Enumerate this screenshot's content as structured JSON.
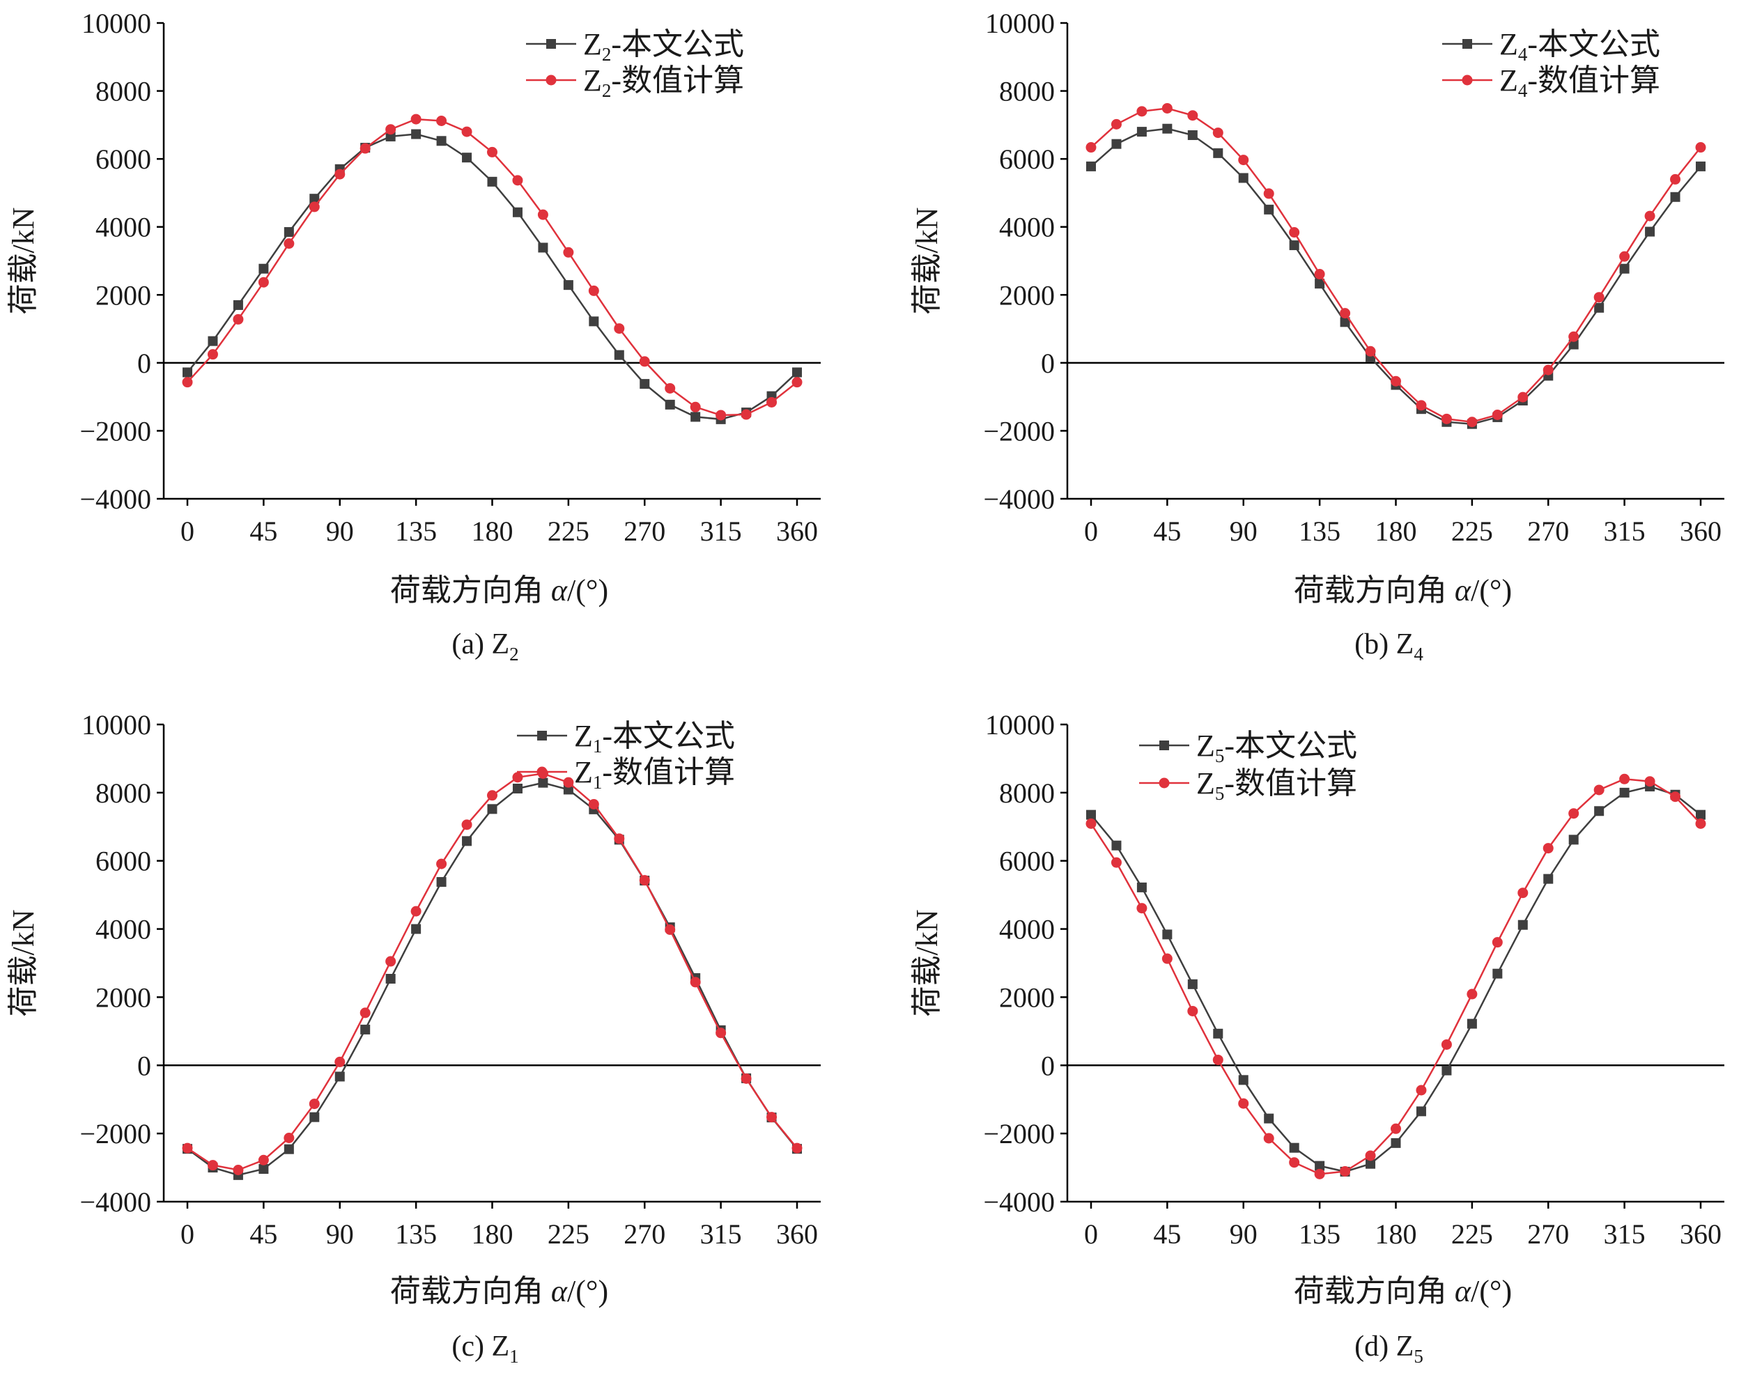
{
  "chart_data": [
    {
      "type": "line",
      "caption": "(a) Z",
      "caption_sub": "2",
      "ylabel": "荷载/kN",
      "xlabel_main": "荷载方向角 ",
      "xlabel_var": "α",
      "xlabel_unit": "/(°)",
      "xlim": [
        0,
        360
      ],
      "ylim": [
        -4000,
        10000
      ],
      "xticks": [
        0,
        45,
        90,
        135,
        180,
        225,
        270,
        315,
        360
      ],
      "yticks": [
        -4000,
        -2000,
        0,
        2000,
        4000,
        6000,
        8000,
        10000
      ],
      "legend_position": "top-right",
      "series": [
        {
          "name_main": "Z",
          "name_sub": "2",
          "name_rest": "-本文公式",
          "color": "#3f3f3f",
          "marker": "square",
          "x": [
            0,
            15,
            30,
            45,
            60,
            75,
            90,
            105,
            120,
            135,
            150,
            165,
            180,
            195,
            210,
            225,
            240,
            255,
            270,
            285,
            300,
            315,
            330,
            345,
            360
          ],
          "y": [
            -280,
            640,
            1700,
            2770,
            3850,
            4830,
            5700,
            6330,
            6660,
            6730,
            6530,
            6040,
            5330,
            4430,
            3390,
            2290,
            1220,
            230,
            -620,
            -1230,
            -1590,
            -1660,
            -1460,
            -980,
            -280
          ]
        },
        {
          "name_main": "Z",
          "name_sub": "2",
          "name_rest": "-数值计算",
          "color": "#e0323c",
          "marker": "circle",
          "x": [
            0,
            15,
            30,
            45,
            60,
            75,
            90,
            105,
            120,
            135,
            150,
            165,
            180,
            195,
            210,
            225,
            240,
            255,
            270,
            285,
            300,
            315,
            330,
            345,
            360
          ],
          "y": [
            -570,
            250,
            1280,
            2370,
            3510,
            4590,
            5550,
            6310,
            6870,
            7170,
            7120,
            6800,
            6200,
            5370,
            4360,
            3250,
            2120,
            1010,
            40,
            -750,
            -1300,
            -1540,
            -1520,
            -1160,
            -570
          ]
        }
      ]
    },
    {
      "type": "line",
      "caption": "(b) Z",
      "caption_sub": "4",
      "ylabel": "荷载/kN",
      "xlabel_main": "荷载方向角 ",
      "xlabel_var": "α",
      "xlabel_unit": "/(°)",
      "xlim": [
        0,
        360
      ],
      "ylim": [
        -4000,
        10000
      ],
      "xticks": [
        0,
        45,
        90,
        135,
        180,
        225,
        270,
        315,
        360
      ],
      "yticks": [
        -4000,
        -2000,
        0,
        2000,
        4000,
        6000,
        8000,
        10000
      ],
      "legend_position": "top-right",
      "series": [
        {
          "name_main": "Z",
          "name_sub": "4",
          "name_rest": "-本文公式",
          "color": "#3f3f3f",
          "marker": "square",
          "x": [
            0,
            15,
            30,
            45,
            60,
            75,
            90,
            105,
            120,
            135,
            150,
            165,
            180,
            195,
            210,
            225,
            240,
            255,
            270,
            285,
            300,
            315,
            330,
            345,
            360
          ],
          "y": [
            5780,
            6440,
            6800,
            6890,
            6700,
            6170,
            5440,
            4510,
            3460,
            2330,
            1200,
            160,
            -650,
            -1360,
            -1740,
            -1800,
            -1600,
            -1110,
            -380,
            540,
            1620,
            2770,
            3860,
            4880,
            5780
          ]
        },
        {
          "name_main": "Z",
          "name_sub": "4",
          "name_rest": "-数值计算",
          "color": "#e0323c",
          "marker": "circle",
          "x": [
            0,
            15,
            30,
            45,
            60,
            75,
            90,
            105,
            120,
            135,
            150,
            165,
            180,
            195,
            210,
            225,
            240,
            255,
            270,
            285,
            300,
            315,
            330,
            345,
            360
          ],
          "y": [
            6340,
            7020,
            7400,
            7490,
            7280,
            6770,
            5970,
            4980,
            3840,
            2610,
            1460,
            340,
            -540,
            -1250,
            -1650,
            -1740,
            -1530,
            -1010,
            -210,
            770,
            1930,
            3130,
            4320,
            5400,
            6340
          ]
        }
      ]
    },
    {
      "type": "line",
      "caption": "(c) Z",
      "caption_sub": "1",
      "ylabel": "荷载/kN",
      "xlabel_main": "荷载方向角 ",
      "xlabel_var": "α",
      "xlabel_unit": "/(°)",
      "xlim": [
        0,
        360
      ],
      "ylim": [
        -4000,
        10000
      ],
      "xticks": [
        0,
        45,
        90,
        135,
        180,
        225,
        270,
        315,
        360
      ],
      "yticks": [
        -4000,
        -2000,
        0,
        2000,
        4000,
        6000,
        8000,
        10000
      ],
      "legend_position": "top-right",
      "series": [
        {
          "name_main": "Z",
          "name_sub": "1",
          "name_rest": "-本文公式",
          "color": "#3f3f3f",
          "marker": "square",
          "x": [
            0,
            15,
            30,
            45,
            60,
            75,
            90,
            105,
            120,
            135,
            150,
            165,
            180,
            195,
            210,
            225,
            240,
            255,
            270,
            285,
            300,
            315,
            330,
            345,
            360
          ],
          "y": [
            -2450,
            -3000,
            -3220,
            -3040,
            -2460,
            -1520,
            -330,
            1050,
            2540,
            4000,
            5380,
            6580,
            7520,
            8120,
            8290,
            8090,
            7510,
            6620,
            5420,
            4050,
            2560,
            1030,
            -380,
            -1530,
            -2450
          ]
        },
        {
          "name_main": "Z",
          "name_sub": "1",
          "name_rest": "-数值计算",
          "color": "#e0323c",
          "marker": "circle",
          "x": [
            0,
            15,
            30,
            45,
            60,
            75,
            90,
            105,
            120,
            135,
            150,
            165,
            180,
            195,
            210,
            225,
            240,
            255,
            270,
            285,
            300,
            315,
            330,
            345,
            360
          ],
          "y": [
            -2430,
            -2930,
            -3070,
            -2780,
            -2130,
            -1130,
            100,
            1540,
            3050,
            4520,
            5910,
            7060,
            7920,
            8450,
            8560,
            8300,
            7660,
            6650,
            5430,
            3980,
            2440,
            950,
            -390,
            -1520,
            -2430
          ]
        }
      ]
    },
    {
      "type": "line",
      "caption": "(d) Z",
      "caption_sub": "5",
      "ylabel": "荷载/kN",
      "xlabel_main": "荷载方向角 ",
      "xlabel_var": "α",
      "xlabel_unit": "/(°)",
      "xlim": [
        0,
        360
      ],
      "ylim": [
        -4000,
        10000
      ],
      "xticks": [
        0,
        45,
        90,
        135,
        180,
        225,
        270,
        315,
        360
      ],
      "yticks": [
        -4000,
        -2000,
        0,
        2000,
        4000,
        6000,
        8000,
        10000
      ],
      "legend_position": "top-center",
      "series": [
        {
          "name_main": "Z",
          "name_sub": "5",
          "name_rest": "-本文公式",
          "color": "#3f3f3f",
          "marker": "square",
          "x": [
            0,
            15,
            30,
            45,
            60,
            75,
            90,
            105,
            120,
            135,
            150,
            165,
            180,
            195,
            210,
            225,
            240,
            255,
            270,
            285,
            300,
            315,
            330,
            345,
            360
          ],
          "y": [
            7350,
            6450,
            5220,
            3840,
            2380,
            930,
            -430,
            -1560,
            -2420,
            -2950,
            -3120,
            -2890,
            -2280,
            -1350,
            -150,
            1220,
            2690,
            4120,
            5470,
            6620,
            7460,
            8000,
            8180,
            7940,
            7350
          ]
        },
        {
          "name_main": "Z",
          "name_sub": "5",
          "name_rest": "-数值计算",
          "color": "#e0323c",
          "marker": "circle",
          "x": [
            0,
            15,
            30,
            45,
            60,
            75,
            90,
            105,
            120,
            135,
            150,
            165,
            180,
            195,
            210,
            225,
            240,
            255,
            270,
            285,
            300,
            315,
            330,
            345,
            360
          ],
          "y": [
            7090,
            5950,
            4610,
            3130,
            1590,
            160,
            -1120,
            -2140,
            -2850,
            -3190,
            -3110,
            -2650,
            -1860,
            -730,
            610,
            2090,
            3610,
            5060,
            6370,
            7390,
            8080,
            8400,
            8330,
            7880,
            7090
          ]
        }
      ]
    }
  ]
}
